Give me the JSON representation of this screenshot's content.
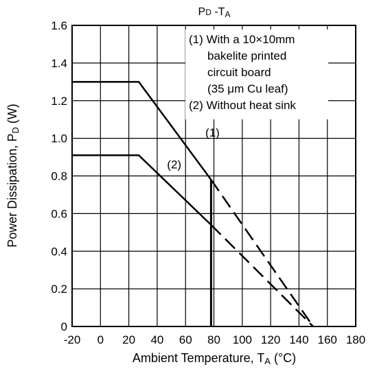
{
  "chart_data": {
    "type": "line",
    "title": {
      "main": "P",
      "main_sub": "D",
      "sep": " -T",
      "sep_sub": "A"
    },
    "xlabel": {
      "main": "Ambient Temperature, T",
      "sub": "A",
      "tail": " (°C)"
    },
    "ylabel": {
      "main": "Power Dissipation, P",
      "sub": "D",
      "tail": " (W)"
    },
    "xlim": [
      -20,
      180
    ],
    "ylim": [
      0,
      1.6
    ],
    "grid": true,
    "x_ticks": [
      {
        "value": -20,
        "label": "-20"
      },
      {
        "value": 0,
        "label": "0"
      },
      {
        "value": 20,
        "label": "20"
      },
      {
        "value": 40,
        "label": "40"
      },
      {
        "value": 60,
        "label": "60"
      },
      {
        "value": 80,
        "label": "80"
      },
      {
        "value": 100,
        "label": "100"
      },
      {
        "value": 120,
        "label": "120"
      },
      {
        "value": 140,
        "label": "140"
      },
      {
        "value": 160,
        "label": "160"
      },
      {
        "value": 180,
        "label": "180"
      }
    ],
    "y_ticks": [
      {
        "value": 0,
        "label": "0"
      },
      {
        "value": 0.2,
        "label": "0.2"
      },
      {
        "value": 0.4,
        "label": "0.4"
      },
      {
        "value": 0.6,
        "label": "0.6"
      },
      {
        "value": 0.8,
        "label": "0.8"
      },
      {
        "value": 1.0,
        "label": "1.0"
      },
      {
        "value": 1.2,
        "label": "1.2"
      },
      {
        "value": 1.4,
        "label": "1.4"
      },
      {
        "value": 1.6,
        "label": "1.6"
      }
    ],
    "series": [
      {
        "name": "(1)",
        "solid": [
          [
            -20,
            1.3
          ],
          [
            27,
            1.3
          ],
          [
            78,
            0.78
          ]
        ],
        "dashed": [
          [
            78,
            0.78
          ],
          [
            150,
            0
          ]
        ],
        "label_at": [
          79,
          1.01
        ]
      },
      {
        "name": "(2)",
        "solid": [
          [
            -20,
            0.91
          ],
          [
            27,
            0.91
          ],
          [
            78,
            0.54
          ]
        ],
        "dashed": [
          [
            78,
            0.54
          ],
          [
            150,
            0
          ]
        ],
        "label_at": [
          52,
          0.84
        ]
      }
    ],
    "vertical_markers": [
      {
        "x": 78,
        "y_from": 0,
        "y_to": 0.78
      }
    ],
    "annotation": {
      "lines": [
        "(1) With a 10×10mm",
        "bakelite printed",
        "circuit board",
        "(35 μm Cu leaf)",
        "(2) Without heat sink"
      ],
      "placement": "top-right"
    }
  }
}
